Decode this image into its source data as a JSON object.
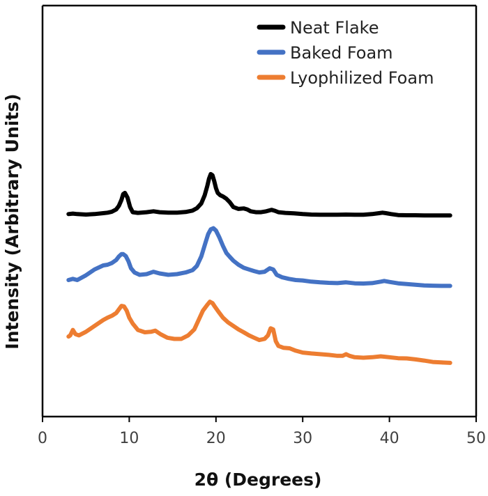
{
  "chart_data": {
    "type": "line",
    "title": "",
    "xlabel": "2θ (Degrees)",
    "ylabel": "Intensity (Arbitrary Units)",
    "xlim": [
      0,
      50
    ],
    "xticks": [
      0,
      10,
      20,
      30,
      40,
      50
    ],
    "ylim": [
      0,
      1
    ],
    "yticks_shown": false,
    "grid": false,
    "legend_position": "top-right",
    "series": [
      {
        "name": "Neat Flake",
        "color": "#000000",
        "x": [
          3.0,
          3.5,
          4.0,
          5.0,
          6.0,
          7.0,
          7.5,
          8.0,
          8.5,
          8.8,
          9.1,
          9.3,
          9.5,
          9.8,
          10.1,
          10.4,
          11.0,
          12.0,
          12.8,
          13.5,
          14.5,
          15.5,
          16.5,
          17.3,
          17.8,
          18.3,
          18.7,
          19.0,
          19.2,
          19.4,
          19.6,
          19.8,
          20.0,
          20.2,
          20.5,
          20.8,
          21.2,
          21.6,
          22.0,
          22.6,
          23.2,
          23.6,
          24.0,
          24.6,
          25.2,
          25.8,
          26.4,
          26.8,
          27.2,
          28.0,
          29.0,
          30.0,
          31.0,
          32.0,
          33.0,
          34.0,
          35.0,
          36.0,
          37.0,
          38.0,
          38.8,
          39.2,
          39.6,
          40.2,
          41.0,
          42.0,
          43.0,
          44.0,
          45.0,
          46.0,
          47.0
        ],
        "y": [
          0.86,
          0.862,
          0.86,
          0.858,
          0.86,
          0.864,
          0.866,
          0.87,
          0.88,
          0.895,
          0.92,
          0.945,
          0.95,
          0.93,
          0.89,
          0.868,
          0.865,
          0.868,
          0.872,
          0.868,
          0.866,
          0.866,
          0.869,
          0.875,
          0.885,
          0.905,
          0.94,
          0.98,
          1.01,
          1.03,
          1.025,
          1.0,
          0.97,
          0.95,
          0.94,
          0.935,
          0.925,
          0.91,
          0.89,
          0.882,
          0.884,
          0.88,
          0.872,
          0.868,
          0.868,
          0.872,
          0.878,
          0.874,
          0.868,
          0.865,
          0.863,
          0.86,
          0.858,
          0.857,
          0.857,
          0.857,
          0.858,
          0.857,
          0.857,
          0.86,
          0.864,
          0.866,
          0.864,
          0.86,
          0.856,
          0.855,
          0.855,
          0.854,
          0.854,
          0.854,
          0.854
        ]
      },
      {
        "name": "Baked Foam",
        "color": "#4472c4",
        "x": [
          3.0,
          3.5,
          4.0,
          5.0,
          6.0,
          7.0,
          7.5,
          8.0,
          8.5,
          8.8,
          9.1,
          9.3,
          9.6,
          9.9,
          10.2,
          10.6,
          11.2,
          12.0,
          12.8,
          13.5,
          14.5,
          15.5,
          16.5,
          17.3,
          17.8,
          18.3,
          18.8,
          19.1,
          19.4,
          19.7,
          20.0,
          20.4,
          20.8,
          21.2,
          21.6,
          22.0,
          22.6,
          23.2,
          23.8,
          24.4,
          25.0,
          25.6,
          26.2,
          26.6,
          27.0,
          27.6,
          28.4,
          29.2,
          30.0,
          31.0,
          32.0,
          33.0,
          34.0,
          35.0,
          36.0,
          37.0,
          38.0,
          39.0,
          39.4,
          40.0,
          41.0,
          42.0,
          43.0,
          44.0,
          45.0,
          46.0,
          47.0
        ],
        "y": [
          0.58,
          0.585,
          0.58,
          0.6,
          0.625,
          0.642,
          0.645,
          0.652,
          0.665,
          0.68,
          0.69,
          0.69,
          0.682,
          0.66,
          0.63,
          0.612,
          0.602,
          0.605,
          0.615,
          0.608,
          0.602,
          0.605,
          0.612,
          0.622,
          0.64,
          0.68,
          0.74,
          0.775,
          0.795,
          0.8,
          0.79,
          0.76,
          0.725,
          0.695,
          0.678,
          0.662,
          0.645,
          0.632,
          0.625,
          0.618,
          0.612,
          0.615,
          0.63,
          0.625,
          0.602,
          0.592,
          0.585,
          0.58,
          0.578,
          0.573,
          0.57,
          0.568,
          0.567,
          0.57,
          0.566,
          0.565,
          0.567,
          0.573,
          0.576,
          0.572,
          0.566,
          0.563,
          0.56,
          0.557,
          0.556,
          0.555,
          0.555
        ]
      },
      {
        "name": "Lyophilized Foam",
        "color": "#ed7d31",
        "x": [
          3.0,
          3.2,
          3.5,
          3.8,
          4.2,
          5.0,
          6.0,
          7.0,
          7.5,
          8.0,
          8.5,
          8.8,
          9.1,
          9.4,
          9.7,
          10.0,
          10.4,
          11.0,
          11.8,
          12.5,
          13.0,
          13.6,
          14.4,
          15.2,
          16.0,
          16.8,
          17.5,
          18.0,
          18.5,
          19.0,
          19.3,
          19.6,
          19.9,
          20.3,
          20.8,
          21.4,
          22.0,
          22.6,
          23.2,
          23.8,
          24.4,
          25.0,
          25.6,
          26.0,
          26.3,
          26.6,
          26.9,
          27.2,
          27.8,
          28.5,
          29.2,
          30.0,
          31.0,
          32.0,
          33.0,
          34.0,
          34.6,
          35.0,
          35.4,
          36.0,
          37.0,
          38.0,
          39.0,
          40.0,
          41.0,
          42.0,
          43.0,
          44.0,
          45.0,
          46.0,
          47.0
        ],
        "y": [
          0.34,
          0.345,
          0.368,
          0.35,
          0.345,
          0.36,
          0.385,
          0.41,
          0.42,
          0.428,
          0.44,
          0.455,
          0.47,
          0.468,
          0.45,
          0.42,
          0.395,
          0.368,
          0.358,
          0.36,
          0.365,
          0.35,
          0.335,
          0.33,
          0.33,
          0.345,
          0.37,
          0.41,
          0.45,
          0.475,
          0.488,
          0.482,
          0.465,
          0.445,
          0.42,
          0.4,
          0.385,
          0.37,
          0.358,
          0.345,
          0.335,
          0.325,
          0.33,
          0.345,
          0.375,
          0.37,
          0.32,
          0.3,
          0.292,
          0.29,
          0.28,
          0.272,
          0.268,
          0.265,
          0.262,
          0.258,
          0.258,
          0.265,
          0.258,
          0.252,
          0.25,
          0.252,
          0.256,
          0.252,
          0.248,
          0.247,
          0.243,
          0.238,
          0.232,
          0.23,
          0.228
        ]
      }
    ]
  }
}
